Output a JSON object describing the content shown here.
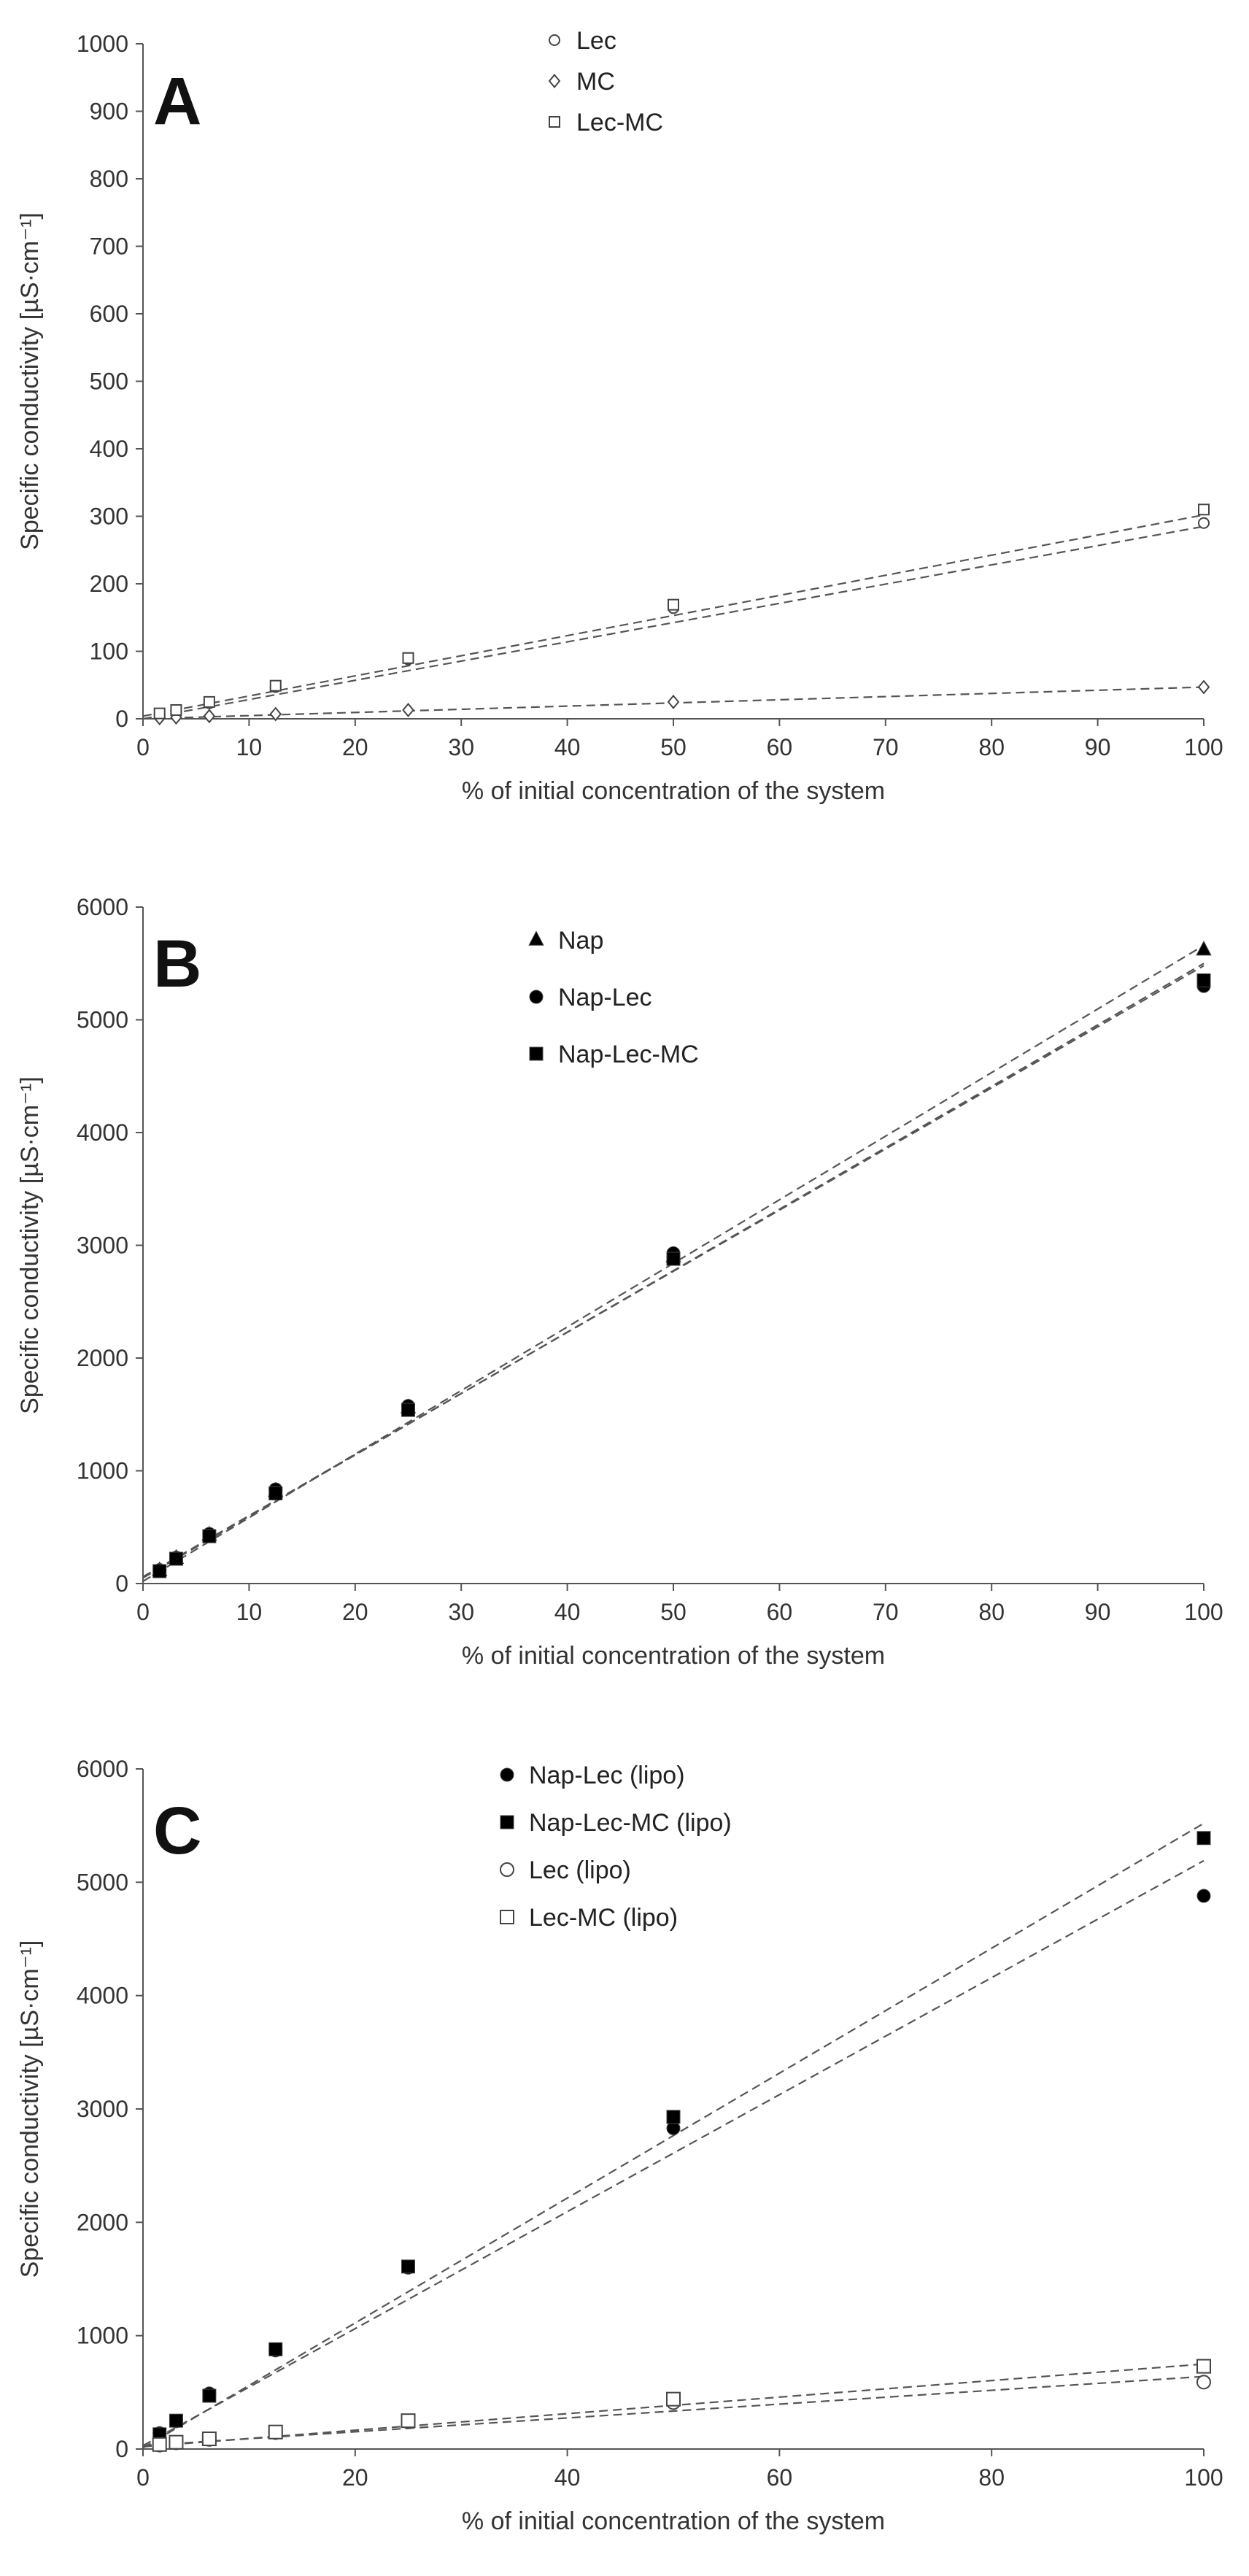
{
  "chart_data": [
    {
      "type": "scatter",
      "panel_label": "A",
      "xlabel": "% of initial concentration of the system",
      "ylabel": "Specific conductivity [µS·cm⁻¹]",
      "xlim": [
        0,
        100
      ],
      "ylim": [
        0,
        1000
      ],
      "xticks": [
        "0",
        "10",
        "20",
        "30",
        "40",
        "50",
        "60",
        "70",
        "80",
        "90",
        "100"
      ],
      "yticks": [
        "0",
        "100",
        "200",
        "300",
        "400",
        "500",
        "600",
        "700",
        "800",
        "900",
        "1000"
      ],
      "legend_position": "top-center",
      "x": [
        1.5625,
        3.125,
        6.25,
        12.5,
        25,
        50,
        100
      ],
      "series": [
        {
          "name": "Lec",
          "marker": "circle-open",
          "values": [
            6,
            11,
            23,
            47,
            88,
            164,
            290
          ],
          "fit": [
            0,
            285
          ]
        },
        {
          "name": "MC",
          "marker": "diamond-open",
          "values": [
            1,
            2,
            4,
            7,
            13,
            25,
            47
          ],
          "fit": [
            0,
            47
          ]
        },
        {
          "name": "Lec-MC",
          "marker": "square-open",
          "values": [
            8,
            13,
            25,
            49,
            90,
            169,
            310
          ],
          "fit": [
            4,
            302
          ]
        }
      ]
    },
    {
      "type": "scatter",
      "panel_label": "B",
      "xlabel": "% of initial concentration of the system",
      "ylabel": "Specific conductivity [µS·cm⁻¹]",
      "xlim": [
        0,
        100
      ],
      "ylim": [
        0,
        6000
      ],
      "xticks": [
        "0",
        "10",
        "20",
        "30",
        "40",
        "50",
        "60",
        "70",
        "80",
        "90",
        "100"
      ],
      "yticks": [
        "0",
        "1000",
        "2000",
        "3000",
        "4000",
        "5000",
        "6000"
      ],
      "legend_position": "top-center",
      "x": [
        1.5625,
        3.125,
        6.25,
        12.5,
        25,
        50,
        100
      ],
      "series": [
        {
          "name": "Nap",
          "marker": "triangle-filled",
          "values": [
            115,
            225,
            430,
            820,
            1560,
            2900,
            5620
          ],
          "fit": [
            20,
            5660
          ]
        },
        {
          "name": "Nap-Lec",
          "marker": "circle-filled",
          "values": [
            120,
            230,
            440,
            835,
            1575,
            2930,
            5300
          ],
          "fit": [
            60,
            5480
          ]
        },
        {
          "name": "Nap-Lec-MC",
          "marker": "square-filled",
          "values": [
            110,
            220,
            420,
            800,
            1540,
            2880,
            5350
          ],
          "fit": [
            50,
            5500
          ]
        }
      ]
    },
    {
      "type": "scatter",
      "panel_label": "C",
      "xlabel": "% of initial concentration of the system",
      "ylabel": "Specific conductivity [µS·cm⁻¹]",
      "xlim": [
        0,
        100
      ],
      "ylim": [
        0,
        6000
      ],
      "xticks": [
        "0",
        "20",
        "40",
        "60",
        "80",
        "100"
      ],
      "yticks": [
        "0",
        "1000",
        "2000",
        "3000",
        "4000",
        "5000",
        "6000"
      ],
      "legend_position": "top-center",
      "x": [
        1.5625,
        3.125,
        6.25,
        12.5,
        25,
        50,
        100
      ],
      "series": [
        {
          "name": "Nap-Lec (lipo)",
          "marker": "circle-filled",
          "values": [
            140,
            245,
            490,
            870,
            1600,
            2830,
            4880
          ],
          "fit": [
            30,
            5190
          ]
        },
        {
          "name": "Nap-Lec-MC (lipo)",
          "marker": "square-filled",
          "values": [
            130,
            250,
            470,
            880,
            1610,
            2930,
            5390
          ],
          "fit": [
            10,
            5520
          ]
        },
        {
          "name": "Lec (lipo)",
          "marker": "circle-open",
          "values": [
            35,
            55,
            85,
            145,
            240,
            410,
            590
          ],
          "fit": [
            30,
            640
          ]
        },
        {
          "name": "Lec-MC (lipo)",
          "marker": "square-open",
          "values": [
            40,
            60,
            90,
            150,
            250,
            440,
            730
          ],
          "fit": [
            20,
            750
          ]
        }
      ]
    }
  ]
}
